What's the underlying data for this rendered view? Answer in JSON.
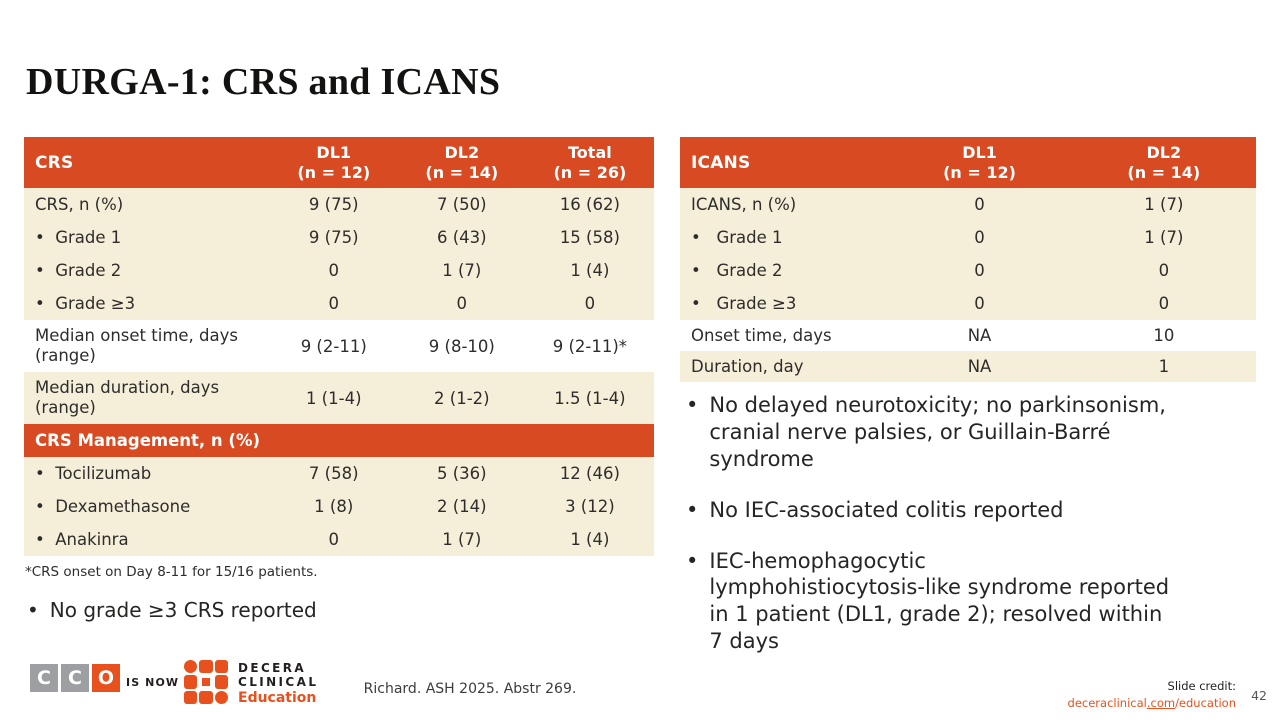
{
  "slide": {
    "title": "DURGA-1: CRS and ICANS",
    "page_number": "42"
  },
  "glyphs": {
    "bullet": "•"
  },
  "colors": {
    "table_header_orange": "#d84a22",
    "row_cream": "#f5eed8",
    "logo_orange": "#e8511d",
    "logo_gray": "#9d9fa2",
    "text_dark": "#2e2d2c"
  },
  "crs_table": {
    "header": {
      "label": "CRS",
      "cols": [
        {
          "line1": "DL1",
          "line2": "(n = 12)"
        },
        {
          "line1": "DL2",
          "line2": "(n = 14)"
        },
        {
          "line1": "Total",
          "line2": "(n = 26)"
        }
      ]
    },
    "rows": [
      {
        "label": "CRS, n (%)",
        "values": [
          "9 (75)",
          "7 (50)",
          "16 (62)"
        ]
      },
      {
        "label": "•  Grade 1",
        "values": [
          "9 (75)",
          "6 (43)",
          "15 (58)"
        ]
      },
      {
        "label": "•  Grade 2",
        "values": [
          "0",
          "1 (7)",
          "1 (4)"
        ]
      },
      {
        "label": "•  Grade ≥3",
        "values": [
          "0",
          "0",
          "0"
        ]
      },
      {
        "label": "Median onset time, days (range)",
        "values": [
          "9 (2-11)",
          "9 (8-10)",
          "9 (2-11)*"
        ]
      },
      {
        "label": "Median duration, days (range)",
        "values": [
          "1 (1-4)",
          "2 (1-2)",
          "1.5 (1-4)"
        ]
      }
    ],
    "section_header": "CRS Management, n (%)",
    "management_rows": [
      {
        "label": "•  Tocilizumab",
        "values": [
          "7 (58)",
          "5 (36)",
          "12 (46)"
        ]
      },
      {
        "label": "•  Dexamethasone",
        "values": [
          "1 (8)",
          "2 (14)",
          "3 (12)"
        ]
      },
      {
        "label": "•  Anakinra",
        "values": [
          "0",
          "1 (7)",
          "1 (4)"
        ]
      }
    ],
    "footnote": "*CRS onset on Day 8-11 for 15/16 patients.",
    "bullet_note": "No grade ≥3 CRS reported"
  },
  "icans_table": {
    "header": {
      "label": "ICANS",
      "cols": [
        {
          "line1": "DL1",
          "line2": "(n = 12)"
        },
        {
          "line1": "DL2",
          "line2": "(n = 14)"
        }
      ]
    },
    "rows": [
      {
        "label": "ICANS, n (%)",
        "values": [
          "0",
          "1 (7)"
        ]
      },
      {
        "label": "•   Grade 1",
        "values": [
          "0",
          "1 (7)"
        ]
      },
      {
        "label": "•   Grade 2",
        "values": [
          "0",
          "0"
        ]
      },
      {
        "label": "•   Grade ≥3",
        "values": [
          "0",
          "0"
        ]
      },
      {
        "label": "Onset time, days",
        "values": [
          "NA",
          "10"
        ]
      },
      {
        "label": "Duration, day",
        "values": [
          "NA",
          "1"
        ]
      }
    ]
  },
  "icans_bullets": [
    "No delayed neurotoxicity; no parkinsonism, cranial nerve palsies, or Guillain-Barré syndrome",
    "No IEC-associated colitis reported",
    "IEC-hemophagocytic lymphohistiocytosis‑like syndrome reported in 1 patient (DL1, grade 2); resolved within 7 days"
  ],
  "footer": {
    "cco_letters": [
      "C",
      "C",
      "O"
    ],
    "is_now": "IS NOW",
    "decera_name_line1": "DECERA",
    "decera_name_line2": "CLINICAL",
    "decera_name_line3": "Education",
    "citation": "Richard. ASH 2025. Abstr 269.",
    "credit_label": "Slide credit:",
    "credit_link_prefix": "deceraclinical",
    "credit_link_mid": ".com",
    "credit_link_suffix": "/education"
  }
}
